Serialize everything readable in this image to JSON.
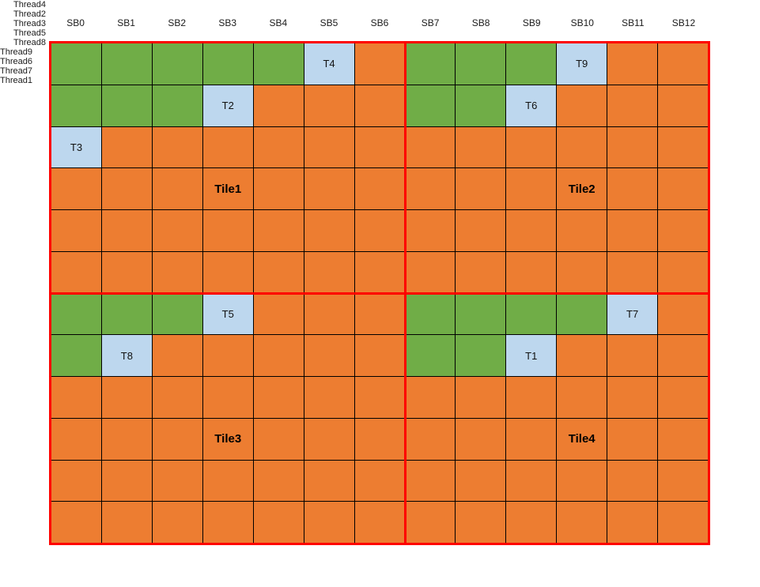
{
  "colors": {
    "green": "#70AD47",
    "orange": "#ED7D31",
    "blue": "#BDD7EE",
    "grid_line": "#000000",
    "tile_border": "#FF0000",
    "background": "#FFFFFF"
  },
  "column_headers": [
    "SB0",
    "SB1",
    "SB2",
    "SB3",
    "SB4",
    "SB5",
    "SB6",
    "SB7",
    "SB8",
    "SB9",
    "SB10",
    "SB11",
    "SB12"
  ],
  "left_row_labels": [
    {
      "row": 0,
      "label": "Thread4"
    },
    {
      "row": 1,
      "label": "Thread2"
    },
    {
      "row": 2,
      "label": "Thread3"
    },
    {
      "row": 6,
      "label": "Thread5"
    },
    {
      "row": 7,
      "label": "Thread8"
    }
  ],
  "right_row_labels": [
    {
      "row": 0,
      "label": "Thread9"
    },
    {
      "row": 1,
      "label": "Thread6"
    },
    {
      "row": 6,
      "label": "Thread7"
    },
    {
      "row": 7,
      "label": "Thread1"
    }
  ],
  "grid_rows": [
    [
      "g",
      "g",
      "g",
      "g",
      "g",
      "T4",
      "o",
      "g",
      "g",
      "g",
      "T9",
      "o",
      "o"
    ],
    [
      "g",
      "g",
      "g",
      "T2",
      "o",
      "o",
      "o",
      "g",
      "g",
      "T6",
      "o",
      "o",
      "o"
    ],
    [
      "T3",
      "o",
      "o",
      "o",
      "o",
      "o",
      "o",
      "o",
      "o",
      "o",
      "o",
      "o",
      "o"
    ],
    [
      "o",
      "o",
      "o",
      "o",
      "o",
      "o",
      "o",
      "o",
      "o",
      "o",
      "o",
      "o",
      "o"
    ],
    [
      "o",
      "o",
      "o",
      "o",
      "o",
      "o",
      "o",
      "o",
      "o",
      "o",
      "o",
      "o",
      "o"
    ],
    [
      "o",
      "o",
      "o",
      "o",
      "o",
      "o",
      "o",
      "o",
      "o",
      "o",
      "o",
      "o",
      "o"
    ],
    [
      "g",
      "g",
      "g",
      "T5",
      "o",
      "o",
      "o",
      "g",
      "g",
      "g",
      "g",
      "T7",
      "o"
    ],
    [
      "g",
      "T8",
      "o",
      "o",
      "o",
      "o",
      "o",
      "g",
      "g",
      "T1",
      "o",
      "o",
      "o"
    ],
    [
      "o",
      "o",
      "o",
      "o",
      "o",
      "o",
      "o",
      "o",
      "o",
      "o",
      "o",
      "o",
      "o"
    ],
    [
      "o",
      "o",
      "o",
      "o",
      "o",
      "o",
      "o",
      "o",
      "o",
      "o",
      "o",
      "o",
      "o"
    ],
    [
      "o",
      "o",
      "o",
      "o",
      "o",
      "o",
      "o",
      "o",
      "o",
      "o",
      "o",
      "o",
      "o"
    ],
    [
      "o",
      "o",
      "o",
      "o",
      "o",
      "o",
      "o",
      "o",
      "o",
      "o",
      "o",
      "o",
      "o"
    ]
  ],
  "tile_labels": [
    {
      "label": "Tile1",
      "row": 3,
      "col": 3
    },
    {
      "label": "Tile2",
      "row": 3,
      "col": 10
    },
    {
      "label": "Tile3",
      "row": 9,
      "col": 3
    },
    {
      "label": "Tile4",
      "row": 9,
      "col": 10
    }
  ]
}
